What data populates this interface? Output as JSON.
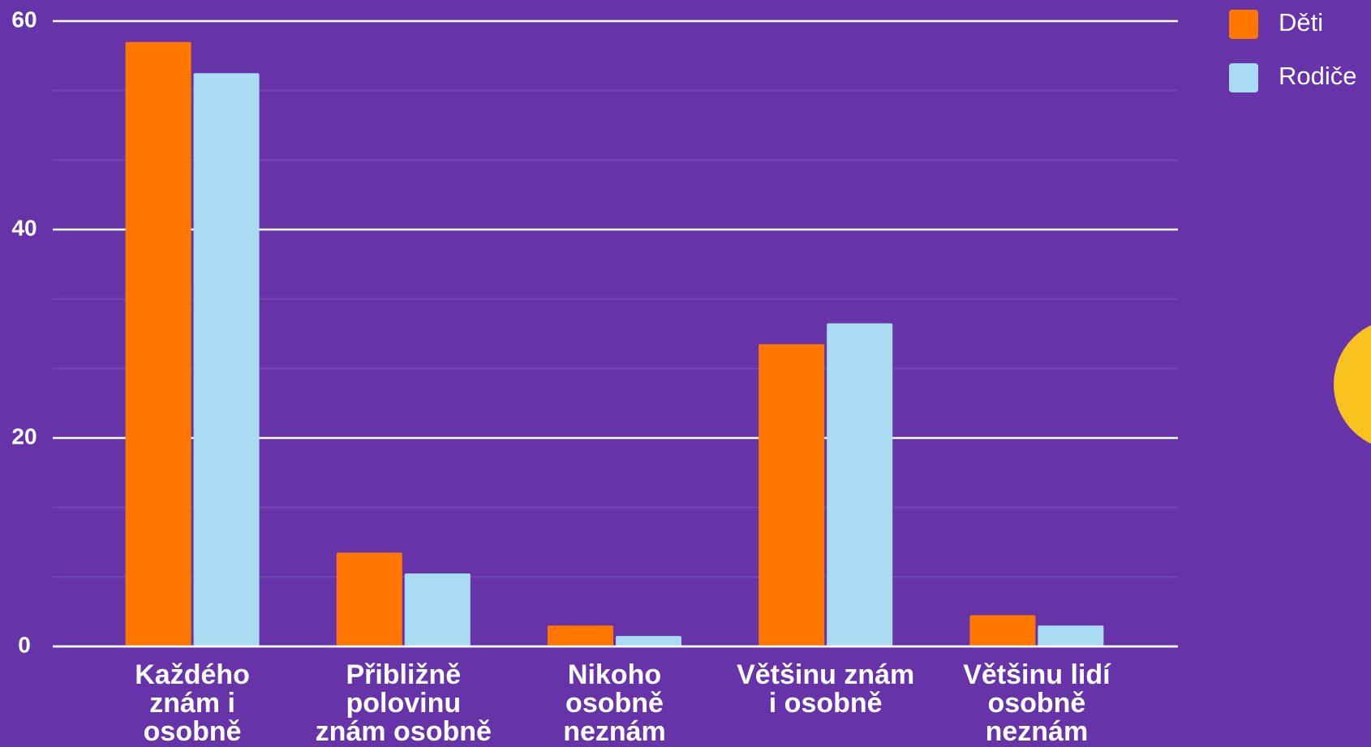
{
  "chart_data": {
    "type": "bar",
    "categories": [
      "Každého znám i osobně",
      "Přibližně polovinu znám osobně",
      "Nikoho osobně neznám",
      "Většinu znám i osobně",
      "Většinu lidí osobně neznám"
    ],
    "series": [
      {
        "name": "Děti",
        "color": "#ff7700",
        "values": [
          58,
          9,
          2,
          29,
          3
        ]
      },
      {
        "name": "Rodiče",
        "color": "#a9dcf3",
        "values": [
          55,
          7,
          1,
          31,
          2
        ]
      }
    ],
    "ylim": [
      0,
      60
    ],
    "yticks": [
      0,
      20,
      40,
      60
    ],
    "grid": true,
    "legend": "top-right"
  }
}
